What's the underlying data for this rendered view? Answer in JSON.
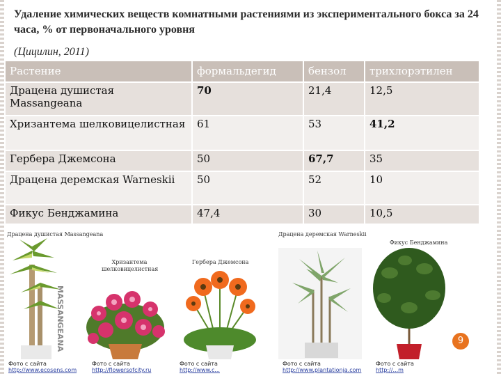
{
  "slide": {
    "title": "Удаление химических веществ комнатными растениями из экспериментального бокса за 24 часа, % от первоначального уровня",
    "subtitle": "(Цицилин, 2011)",
    "page_number": "9"
  },
  "table": {
    "headers": [
      "Растение",
      "формальдегид",
      "бензол",
      "трихлорэтилен"
    ],
    "rows": [
      {
        "plant": "Драцена душистая Massangeana",
        "formaldehyde": "70",
        "benzene": "21,4",
        "trichloroethylene": "12,5"
      },
      {
        "plant": "Хризантема шелковицелистная",
        "formaldehyde": "61",
        "benzene": "53",
        "trichloroethylene": "41,2"
      },
      {
        "plant": "Гербера Джемсона",
        "formaldehyde": "50",
        "benzene": "67,7",
        "trichloroethylene": "35"
      },
      {
        "plant": "Драцена деремская Warneskii",
        "formaldehyde": "50",
        "benzene": "52",
        "trichloroethylene": "10"
      },
      {
        "plant": "Фикус Бенджамина",
        "formaldehyde": "47,4",
        "benzene": "30",
        "trichloroethylene": "10,5"
      }
    ]
  },
  "captions": {
    "dracena_massangeana": "Драцена душистая Massangeana",
    "chrysanthemum": "Хризантема шелковицелистная",
    "gerbera": "Гербера Джемсона",
    "dracena_warneskii": "Драцена деремская Warneskii",
    "ficus": "Фикус Бенджамина"
  },
  "photo_label": "MASSANGEANA",
  "credits": [
    {
      "label": "Фото с сайта",
      "link": "http://www.ecosens.com"
    },
    {
      "label": "Фото с сайта",
      "link": "http://flowersofcity.ru"
    },
    {
      "label": "Фото с сайта",
      "link": "http://www.c..."
    },
    {
      "label": "Фото с сайта",
      "link": "http://www.plantationja.com"
    },
    {
      "label": "Фото с сайта",
      "link": "http://...m"
    }
  ]
}
